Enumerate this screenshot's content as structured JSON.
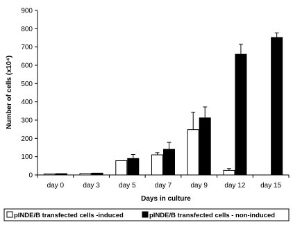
{
  "chart_data": {
    "type": "bar",
    "title": "",
    "xlabel": "Days in culture",
    "ylabel": "Number of cells (x10⁴)",
    "categories": [
      "day 0",
      "day 3",
      "day 5",
      "day 7",
      "day 9",
      "day 12",
      "day 15"
    ],
    "ylim": [
      0,
      900
    ],
    "yticks": [
      0,
      100,
      200,
      300,
      400,
      500,
      600,
      700,
      800,
      900
    ],
    "grid": false,
    "legend_position": "bottom",
    "series": [
      {
        "name": "pINDE/B transfected cells -induced",
        "color": "#ffffff",
        "values": [
          5,
          8,
          78,
          110,
          248,
          25,
          null
        ],
        "errors": [
          0,
          0,
          0,
          12,
          95,
          10,
          null
        ]
      },
      {
        "name": "pINDE/B transfected cells - non-induced",
        "color": "#000000",
        "values": [
          7,
          10,
          90,
          140,
          312,
          660,
          752
        ],
        "errors": [
          0,
          0,
          22,
          38,
          60,
          55,
          25
        ]
      }
    ]
  }
}
